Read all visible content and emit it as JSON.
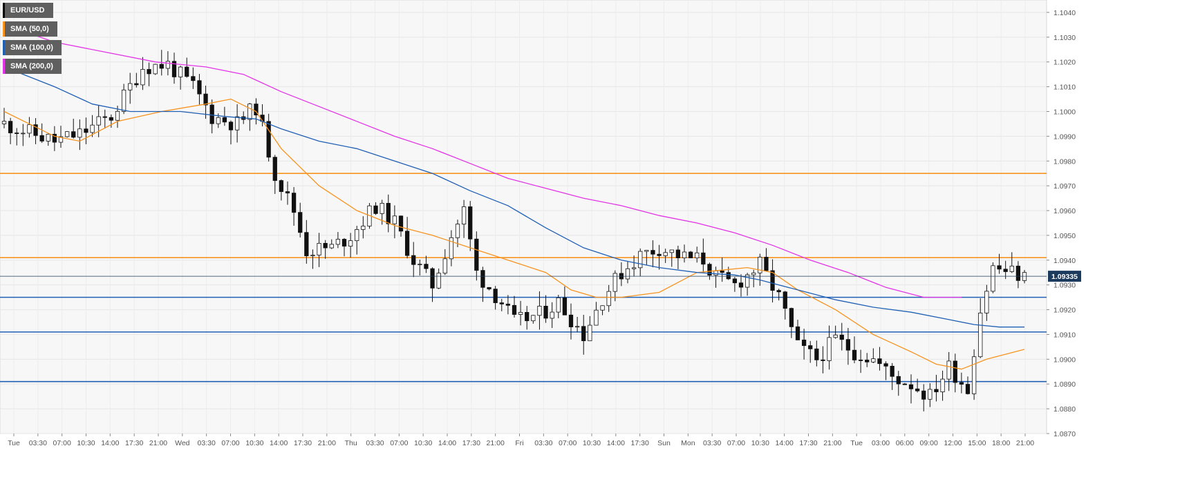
{
  "legend": [
    {
      "label": "EUR/USD",
      "color": "#000000"
    },
    {
      "label": "SMA (50,0)",
      "color": "#f7931e"
    },
    {
      "label": "SMA (100,0)",
      "color": "#1f5fb4"
    },
    {
      "label": "SMA (200,0)",
      "color": "#e233e6"
    }
  ],
  "chart_data": {
    "type": "candlestick",
    "ylim": [
      1.087,
      1.1045
    ],
    "grid": true,
    "y_ticks": [
      "1.0870",
      "1.0880",
      "1.0890",
      "1.0900",
      "1.0910",
      "1.0920",
      "1.0930",
      "1.0940",
      "1.0950",
      "1.0960",
      "1.0970",
      "1.0980",
      "1.0990",
      "1.1000",
      "1.1010",
      "1.1020",
      "1.1030",
      "1.1040"
    ],
    "x_ticks": [
      "Tue",
      "03:30",
      "07:00",
      "10:30",
      "14:00",
      "17:30",
      "21:00",
      "Wed",
      "03:30",
      "07:00",
      "10:30",
      "14:00",
      "17:30",
      "21:00",
      "Thu",
      "03:30",
      "07:00",
      "10:30",
      "14:00",
      "17:30",
      "21:00",
      "Fri",
      "03:30",
      "07:00",
      "10:30",
      "14:00",
      "17:30",
      "Sun",
      "Mon",
      "03:30",
      "07:00",
      "10:30",
      "14:00",
      "17:30",
      "21:00",
      "Tue",
      "03:00",
      "06:00",
      "09:00",
      "12:00",
      "15:00",
      "18:00",
      "21:00"
    ],
    "current_price": "1.09335",
    "levels": [
      {
        "value": 1.0975,
        "color": "#f7931e"
      },
      {
        "value": 1.0941,
        "color": "#f7931e"
      },
      {
        "value": 1.0925,
        "color": "#1f5fb4"
      },
      {
        "value": 1.0911,
        "color": "#1f5fb4"
      },
      {
        "value": 1.0891,
        "color": "#1f5fb4"
      }
    ],
    "price_path": [
      [
        0,
        1.0995
      ],
      [
        8,
        1.0988
      ],
      [
        12,
        1.0991
      ],
      [
        17,
        1.0998
      ],
      [
        22,
        1.1018
      ],
      [
        26,
        1.1019
      ],
      [
        30,
        1.101
      ],
      [
        33,
        1.0998
      ],
      [
        37,
        1.0995
      ],
      [
        40,
        1.1002
      ],
      [
        43,
        1.0975
      ],
      [
        46,
        1.096
      ],
      [
        48,
        1.0944
      ],
      [
        52,
        1.0945
      ],
      [
        55,
        1.095
      ],
      [
        59,
        1.0962
      ],
      [
        62,
        1.0955
      ],
      [
        65,
        1.094
      ],
      [
        68,
        1.093
      ],
      [
        71,
        1.095
      ],
      [
        73,
        1.096
      ],
      [
        75,
        1.0935
      ],
      [
        79,
        1.0923
      ],
      [
        81,
        1.0915
      ],
      [
        85,
        1.0918
      ],
      [
        88,
        1.0923
      ],
      [
        92,
        1.091
      ],
      [
        95,
        1.0925
      ],
      [
        98,
        1.0935
      ],
      [
        101,
        1.0942
      ],
      [
        104,
        1.0945
      ],
      [
        108,
        1.0941
      ],
      [
        111,
        1.094
      ],
      [
        113,
        1.0933
      ],
      [
        116,
        1.093
      ],
      [
        120,
        1.0938
      ],
      [
        123,
        1.0925
      ],
      [
        126,
        1.0905
      ],
      [
        129,
        1.09
      ],
      [
        132,
        1.0908
      ],
      [
        135,
        1.0903
      ],
      [
        138,
        1.09
      ],
      [
        141,
        1.0893
      ],
      [
        144,
        1.089
      ],
      [
        147,
        1.0885
      ],
      [
        150,
        1.0897
      ],
      [
        153,
        1.0888
      ],
      [
        155,
        1.092
      ],
      [
        157,
        1.0937
      ],
      [
        160,
        1.0935
      ],
      [
        162,
        1.0933
      ]
    ],
    "sma_50": [
      [
        0,
        1.1
      ],
      [
        8,
        1.099
      ],
      [
        12,
        1.0988
      ],
      [
        18,
        1.0996
      ],
      [
        25,
        1.1
      ],
      [
        32,
        1.1003
      ],
      [
        36,
        1.1005
      ],
      [
        40,
        1.1
      ],
      [
        44,
        1.0985
      ],
      [
        50,
        1.097
      ],
      [
        56,
        1.096
      ],
      [
        62,
        1.0954
      ],
      [
        68,
        1.095
      ],
      [
        74,
        1.0945
      ],
      [
        80,
        1.094
      ],
      [
        86,
        1.0935
      ],
      [
        90,
        1.0928
      ],
      [
        94,
        1.0925
      ],
      [
        98,
        1.0925
      ],
      [
        104,
        1.0927
      ],
      [
        110,
        1.0935
      ],
      [
        114,
        1.0936
      ],
      [
        118,
        1.0937
      ],
      [
        122,
        1.0935
      ],
      [
        126,
        1.0928
      ],
      [
        132,
        1.092
      ],
      [
        138,
        1.091
      ],
      [
        144,
        1.0903
      ],
      [
        148,
        1.0898
      ],
      [
        152,
        1.0896
      ],
      [
        156,
        1.09
      ],
      [
        162,
        1.0904
      ]
    ],
    "sma_100": [
      [
        0,
        1.1018
      ],
      [
        8,
        1.101
      ],
      [
        14,
        1.1003
      ],
      [
        20,
        1.1
      ],
      [
        28,
        1.1
      ],
      [
        35,
        1.0998
      ],
      [
        40,
        1.0997
      ],
      [
        44,
        1.0993
      ],
      [
        50,
        1.0988
      ],
      [
        56,
        1.0985
      ],
      [
        62,
        1.098
      ],
      [
        68,
        1.0975
      ],
      [
        74,
        1.0968
      ],
      [
        80,
        1.0962
      ],
      [
        86,
        1.0953
      ],
      [
        92,
        1.0945
      ],
      [
        98,
        1.094
      ],
      [
        104,
        1.0937
      ],
      [
        110,
        1.0935
      ],
      [
        116,
        1.0934
      ],
      [
        120,
        1.0932
      ],
      [
        126,
        1.0928
      ],
      [
        132,
        1.0924
      ],
      [
        138,
        1.0921
      ],
      [
        144,
        1.0919
      ],
      [
        150,
        1.0916
      ],
      [
        154,
        1.0914
      ],
      [
        158,
        1.0913
      ],
      [
        162,
        1.0913
      ]
    ],
    "sma_200": [
      [
        0,
        1.1035
      ],
      [
        8,
        1.1028
      ],
      [
        16,
        1.1024
      ],
      [
        24,
        1.102
      ],
      [
        32,
        1.1018
      ],
      [
        38,
        1.1015
      ],
      [
        44,
        1.1008
      ],
      [
        50,
        1.1002
      ],
      [
        56,
        1.0996
      ],
      [
        62,
        1.099
      ],
      [
        68,
        1.0985
      ],
      [
        74,
        1.0979
      ],
      [
        80,
        1.0973
      ],
      [
        86,
        1.0969
      ],
      [
        92,
        1.0965
      ],
      [
        98,
        1.0962
      ],
      [
        104,
        1.0958
      ],
      [
        110,
        1.0955
      ],
      [
        116,
        1.0951
      ],
      [
        122,
        1.0946
      ],
      [
        128,
        1.094
      ],
      [
        134,
        1.0935
      ],
      [
        140,
        1.0929
      ],
      [
        146,
        1.0925
      ],
      [
        152,
        1.0925
      ]
    ]
  }
}
